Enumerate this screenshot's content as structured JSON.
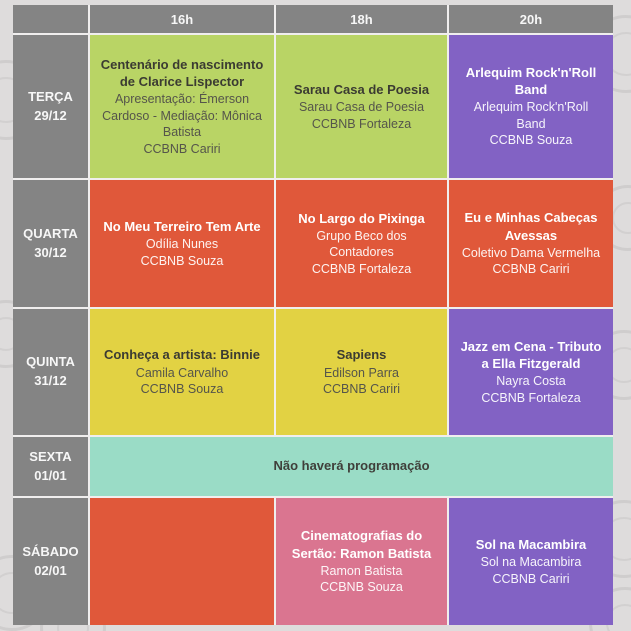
{
  "page": {
    "background": "#dedcdc"
  },
  "colors": {
    "gray": "#848484",
    "green": "#b9d465",
    "orange": "#e0583a",
    "yellow": "#e2d243",
    "purple": "#8262c4",
    "teal": "#9adcc6",
    "pink": "#da7590"
  },
  "header": {
    "times": [
      "16h",
      "18h",
      "20h"
    ]
  },
  "rows": [
    {
      "day": "TERÇA",
      "date": "29/12",
      "cells": [
        {
          "style": "green",
          "title": "Centenário de nascimento de Clarice Lispector",
          "detail": "Apresentação: Émerson Cardoso - Mediação: Mônica Batista",
          "venue": "CCBNB Cariri"
        },
        {
          "style": "green",
          "title": "Sarau Casa de Poesia",
          "detail": "Sarau Casa de Poesia",
          "venue": "CCBNB Fortaleza"
        },
        {
          "style": "purple",
          "title": "Arlequim Rock'n'Roll Band",
          "detail": "Arlequim Rock'n'Roll Band",
          "venue": "CCBNB Souza"
        }
      ]
    },
    {
      "day": "QUARTA",
      "date": "30/12",
      "cells": [
        {
          "style": "orange",
          "title": "No Meu Terreiro Tem Arte",
          "detail": "Odília Nunes",
          "venue": "CCBNB Souza"
        },
        {
          "style": "orange",
          "title": "No Largo do Pixinga",
          "detail": "Grupo Beco dos Contadores",
          "venue": "CCBNB Fortaleza"
        },
        {
          "style": "orange",
          "title": "Eu e Minhas Cabeças Avessas",
          "detail": "Coletivo Dama Vermelha",
          "venue": "CCBNB Cariri"
        }
      ]
    },
    {
      "day": "QUINTA",
      "date": "31/12",
      "cells": [
        {
          "style": "yellow",
          "title": "Conheça a artista: Binnie",
          "detail": "Camila Carvalho",
          "venue": "CCBNB Souza"
        },
        {
          "style": "yellow",
          "title": "Sapiens",
          "detail": "Edilson Parra",
          "venue": "CCBNB Cariri"
        },
        {
          "style": "purple",
          "title": "Jazz em Cena - Tributo a Ella Fitzgerald",
          "detail": "Nayra Costa",
          "venue": "CCBNB Fortaleza"
        }
      ]
    },
    {
      "day": "SEXTA",
      "date": "01/01",
      "full_cell": {
        "style": "teal",
        "title": "Não haverá programação"
      }
    },
    {
      "day": "SÁBADO",
      "date": "02/01",
      "cells": [
        {
          "style": "orange",
          "title": "",
          "detail": "",
          "venue": ""
        },
        {
          "style": "pink",
          "title": "Cinematografias do Sertão: Ramon Batista",
          "detail": "Ramon Batista",
          "venue": "CCBNB Souza"
        },
        {
          "style": "purple",
          "title": "Sol na Macambira",
          "detail": "Sol na Macambira",
          "venue": "CCBNB Cariri"
        }
      ]
    }
  ]
}
